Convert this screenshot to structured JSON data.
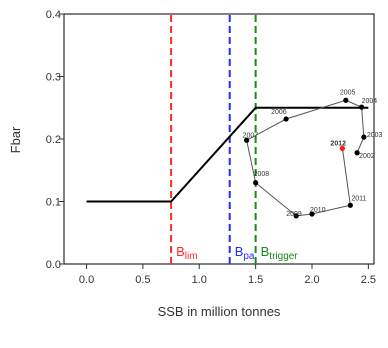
{
  "chart_data": {
    "type": "line",
    "title": "",
    "xlabel": "SSB in million tonnes",
    "ylabel": "Fbar",
    "xlim": [
      -0.2,
      2.55
    ],
    "ylim": [
      0.0,
      0.4
    ],
    "x_ticks": [
      "0.0",
      "0.5",
      "1.0",
      "1.5",
      "2.0",
      "2.5"
    ],
    "y_ticks": [
      "0.0",
      "0.1",
      "0.2",
      "0.3",
      "0.4"
    ],
    "x_tick_values": [
      0.0,
      0.5,
      1.0,
      1.5,
      2.0,
      2.5
    ],
    "y_tick_values": [
      0.0,
      0.1,
      0.2,
      0.3,
      0.4
    ],
    "grid": false,
    "harvest_control_rule": {
      "x": [
        0.0,
        0.75,
        1.5,
        2.5
      ],
      "y": [
        0.1,
        0.1,
        0.25,
        0.25
      ],
      "color": "#000000"
    },
    "reference_lines": [
      {
        "main": "B",
        "sub": "lim",
        "x": 0.75,
        "color": "#ff2a2a"
      },
      {
        "main": "B",
        "sub": "pa",
        "x": 1.27,
        "color": "#2a2aff"
      },
      {
        "main": "B",
        "sub": "trigger",
        "x": 1.5,
        "color": "#1a8a1a"
      }
    ],
    "series": [
      {
        "points": [
          {
            "label": "2002",
            "x": 2.4,
            "y": 0.178
          },
          {
            "label": "2003",
            "x": 2.46,
            "y": 0.203
          },
          {
            "label": "2004",
            "x": 2.44,
            "y": 0.251
          },
          {
            "label": "2005",
            "x": 2.3,
            "y": 0.262
          },
          {
            "label": "2006",
            "x": 1.77,
            "y": 0.232
          },
          {
            "label": "2007",
            "x": 1.42,
            "y": 0.198
          },
          {
            "label": "2008",
            "x": 1.5,
            "y": 0.13
          },
          {
            "label": "2009",
            "x": 1.86,
            "y": 0.077
          },
          {
            "label": "2010",
            "x": 2.0,
            "y": 0.08
          },
          {
            "label": "2011",
            "x": 2.34,
            "y": 0.094
          },
          {
            "label": "2012",
            "x": 2.27,
            "y": 0.185,
            "highlight": true
          }
        ],
        "color": "#555555",
        "marker_color": "#000000",
        "highlight_color": "#ff1a1a"
      }
    ]
  }
}
